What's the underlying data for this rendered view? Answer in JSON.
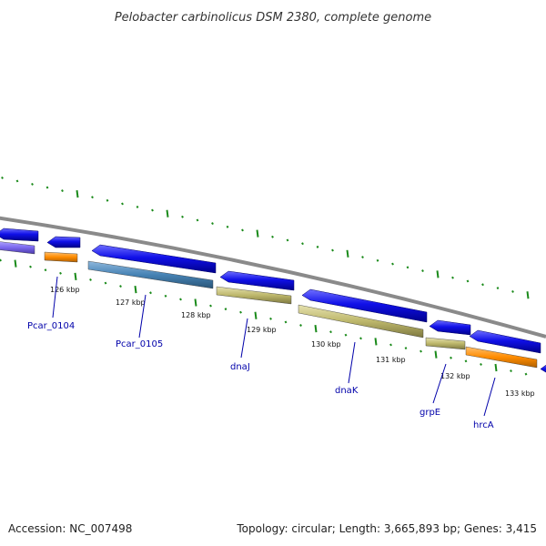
{
  "title": "Pelobacter carbinolicus DSM 2380, complete genome",
  "footer": {
    "accession": "Accession: NC_007498",
    "summary": "Topology: circular; Length: 3,665,893 bp; Genes: 3,415"
  },
  "colors": {
    "background": "#ffffff",
    "backbone": "#8a8a8a",
    "gene_blue": "#1010e0",
    "gene_violet": "#7b68ee",
    "gene_orange": "#ff8c00",
    "gene_steel": "#4682b4",
    "gene_khaki": "#bdb76b",
    "tick_green": "#1a8a1a",
    "label_blue": "#0000aa"
  },
  "kbp_ticks": [
    "126 kbp",
    "127 kbp",
    "128 kbp",
    "129 kbp",
    "130 kbp",
    "131 kbp",
    "132 kbp",
    "133 kbp"
  ],
  "genes": {
    "forward": [
      {
        "direction": "left",
        "color": "gene_blue"
      },
      {
        "direction": "left",
        "color": "gene_blue"
      },
      {
        "direction": "left",
        "color": "gene_blue"
      },
      {
        "direction": "left",
        "color": "gene_blue"
      },
      {
        "direction": "left",
        "color": "gene_blue"
      },
      {
        "direction": "left",
        "color": "gene_blue"
      },
      {
        "direction": "left",
        "color": "gene_blue"
      },
      {
        "direction": "left",
        "color": "gene_blue"
      }
    ],
    "reverse": [
      {
        "color": "gene_violet"
      },
      {
        "color": "gene_orange"
      },
      {
        "color": "gene_steel"
      },
      {
        "color": "gene_khaki"
      },
      {
        "color": "gene_khaki"
      },
      {
        "color": "gene_khaki"
      },
      {
        "color": "gene_orange"
      }
    ]
  },
  "gene_labels": [
    "Pcar_0104",
    "Pcar_0105",
    "dnaJ",
    "dnaK",
    "grpE",
    "hrcA"
  ]
}
